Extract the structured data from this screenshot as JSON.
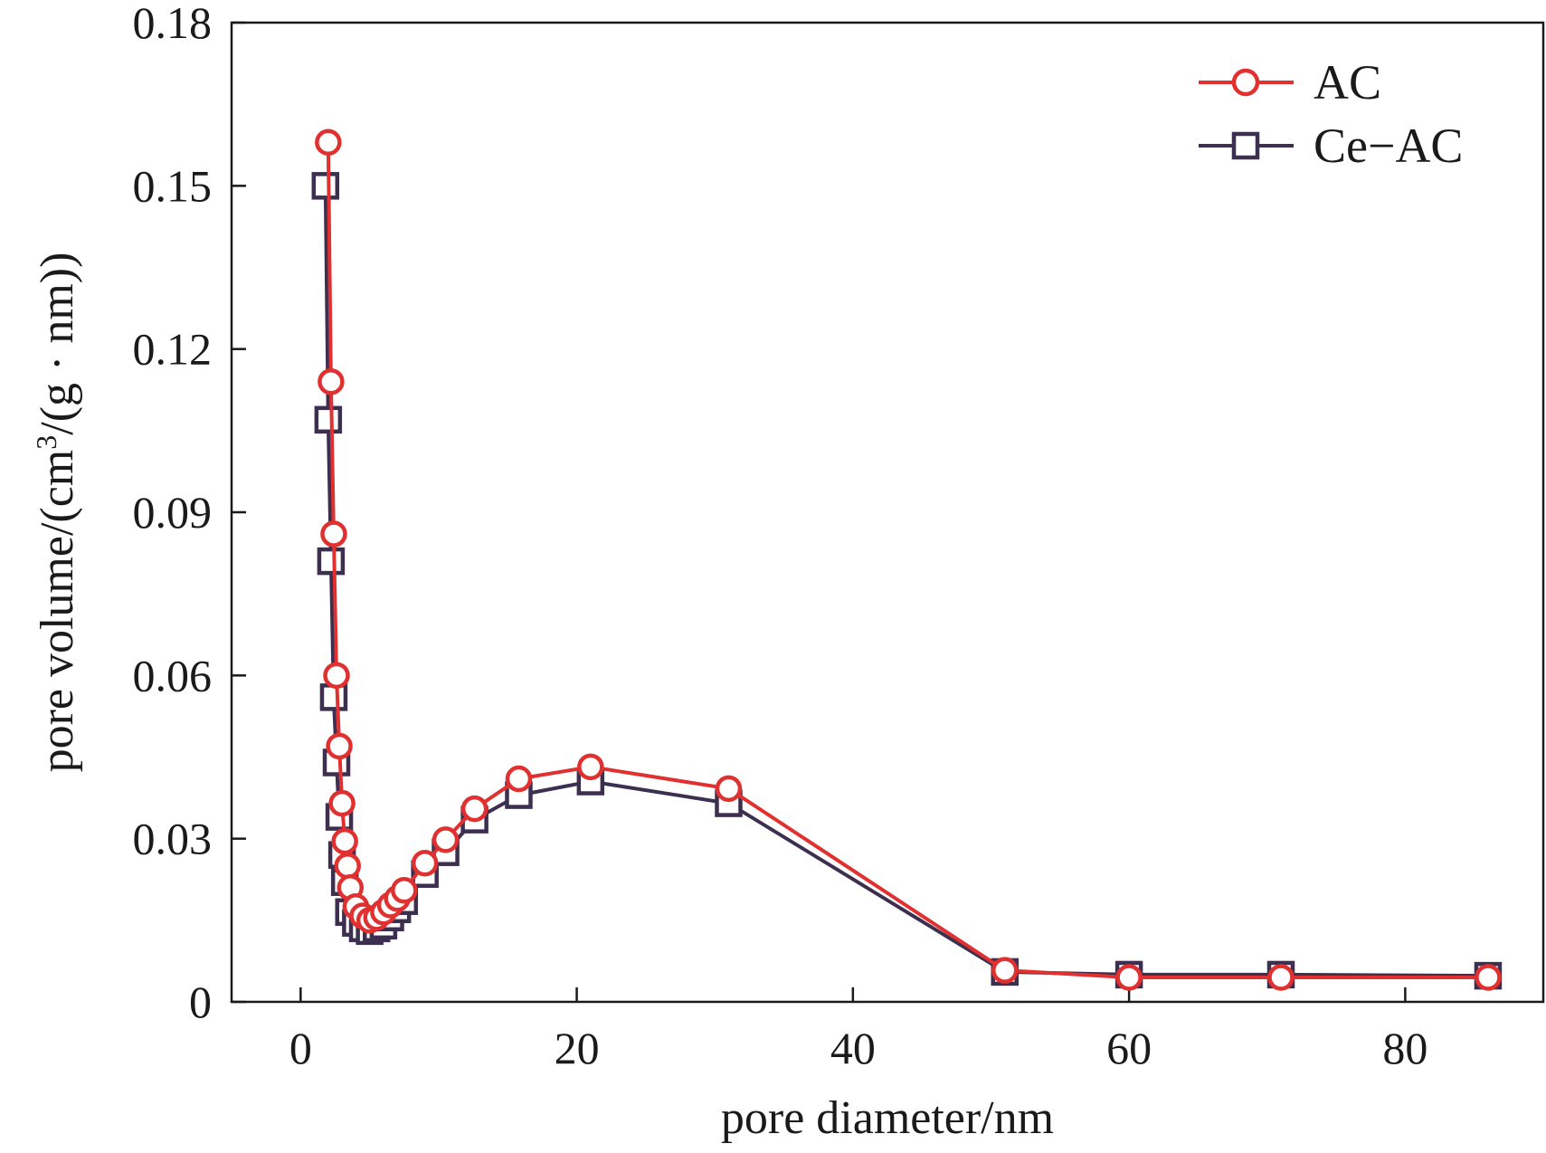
{
  "chart_data": {
    "type": "line",
    "xlabel": "pore diameter/nm",
    "ylabel_main": "pore volume/(cm",
    "ylabel_sup": "3",
    "ylabel_tail": "/(g · nm))",
    "xlim": [
      -5,
      90
    ],
    "ylim": [
      0,
      0.18
    ],
    "x_ticks": [
      0,
      20,
      40,
      60,
      80
    ],
    "x_tick_labels": [
      "0",
      "20",
      "40",
      "60",
      "80"
    ],
    "y_ticks": [
      0,
      0.03,
      0.06,
      0.09,
      0.12,
      0.15,
      0.18
    ],
    "y_tick_labels": [
      "0",
      "0.03",
      "0.06",
      "0.09",
      "0.12",
      "0.15",
      "0.18"
    ],
    "grid": false,
    "legend_position": "top-right",
    "series": [
      {
        "name": "AC",
        "color": "#e03030",
        "marker": "circle",
        "x": [
          2.0,
          2.2,
          2.4,
          2.6,
          2.8,
          3.0,
          3.2,
          3.4,
          3.6,
          4.0,
          4.5,
          5.0,
          5.5,
          6.0,
          6.5,
          7.0,
          7.5,
          9.0,
          10.5,
          12.6,
          15.8,
          21.0,
          31.0,
          51.0,
          60.0,
          71.0,
          86.0
        ],
        "y": [
          0.158,
          0.114,
          0.086,
          0.06,
          0.047,
          0.0365,
          0.0295,
          0.025,
          0.021,
          0.0175,
          0.0158,
          0.015,
          0.0155,
          0.0165,
          0.0178,
          0.019,
          0.0205,
          0.0255,
          0.0298,
          0.0355,
          0.041,
          0.0432,
          0.0392,
          0.0058,
          0.0045,
          0.0045,
          0.0045
        ]
      },
      {
        "name": "Ce−AC",
        "color": "#3d2f4f",
        "marker": "square",
        "x": [
          1.8,
          2.0,
          2.2,
          2.4,
          2.6,
          2.8,
          3.0,
          3.2,
          3.5,
          4.0,
          4.5,
          5.0,
          5.5,
          6.0,
          6.5,
          7.0,
          7.5,
          9.0,
          10.5,
          12.6,
          15.8,
          21.0,
          31.0,
          51.0,
          60.0,
          71.0,
          86.0
        ],
        "y": [
          0.15,
          0.107,
          0.081,
          0.056,
          0.044,
          0.034,
          0.027,
          0.022,
          0.0165,
          0.0145,
          0.0135,
          0.013,
          0.0135,
          0.014,
          0.0155,
          0.017,
          0.0185,
          0.0235,
          0.0275,
          0.0335,
          0.038,
          0.0405,
          0.0365,
          0.0055,
          0.005,
          0.005,
          0.0048
        ]
      }
    ]
  }
}
